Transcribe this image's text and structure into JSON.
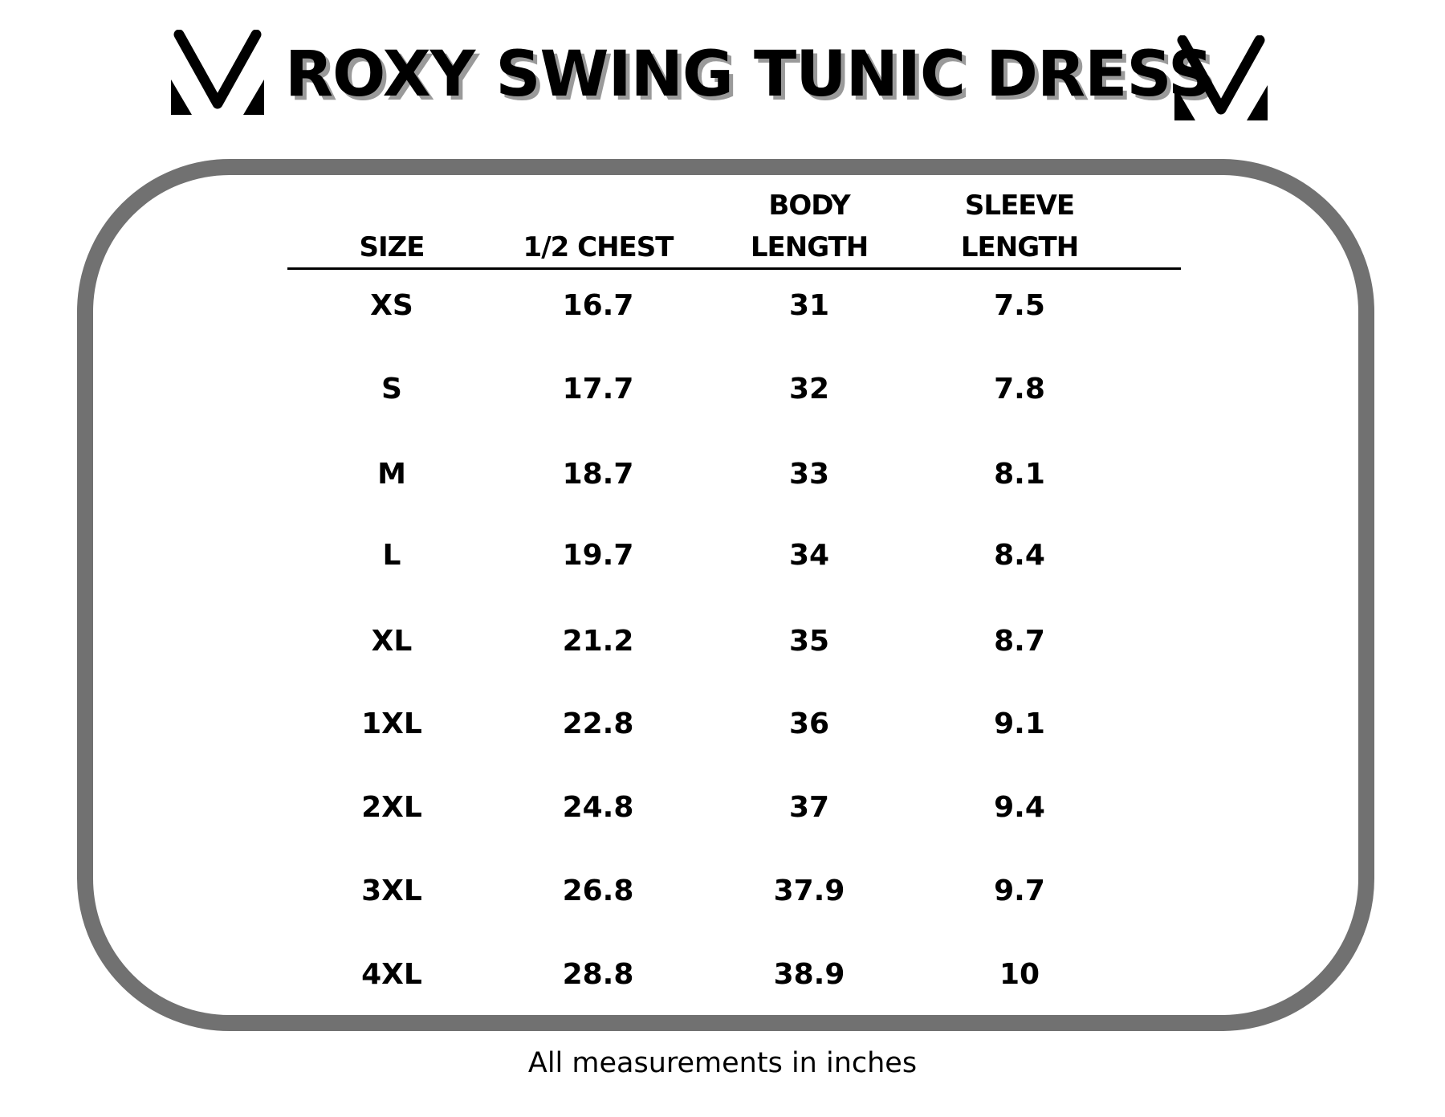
{
  "title": "ROXY SWING TUNIC DRESS",
  "logo": {
    "name": "brand-v-logo",
    "color": "#000000"
  },
  "colors": {
    "frame": "#717171",
    "title_shadow": "#9a9a9a"
  },
  "table": {
    "headers": [
      {
        "line1": "",
        "line2": "SIZE"
      },
      {
        "line1": "",
        "line2": "1/2 CHEST"
      },
      {
        "line1": "BODY",
        "line2": "LENGTH"
      },
      {
        "line1": "SLEEVE",
        "line2": "LENGTH"
      }
    ],
    "rows": [
      [
        "XS",
        "16.7",
        "31",
        "7.5"
      ],
      [
        "S",
        "17.7",
        "32",
        "7.8"
      ],
      [
        "M",
        "18.7",
        "33",
        "8.1"
      ],
      [
        "L",
        "19.7",
        "34",
        "8.4"
      ],
      [
        "XL",
        "21.2",
        "35",
        "8.7"
      ],
      [
        "1XL",
        "22.8",
        "36",
        "9.1"
      ],
      [
        "2XL",
        "24.8",
        "37",
        "9.4"
      ],
      [
        "3XL",
        "26.8",
        "37.9",
        "9.7"
      ],
      [
        "4XL",
        "28.8",
        "38.9",
        "10"
      ]
    ]
  },
  "footer": "All measurements in inches"
}
